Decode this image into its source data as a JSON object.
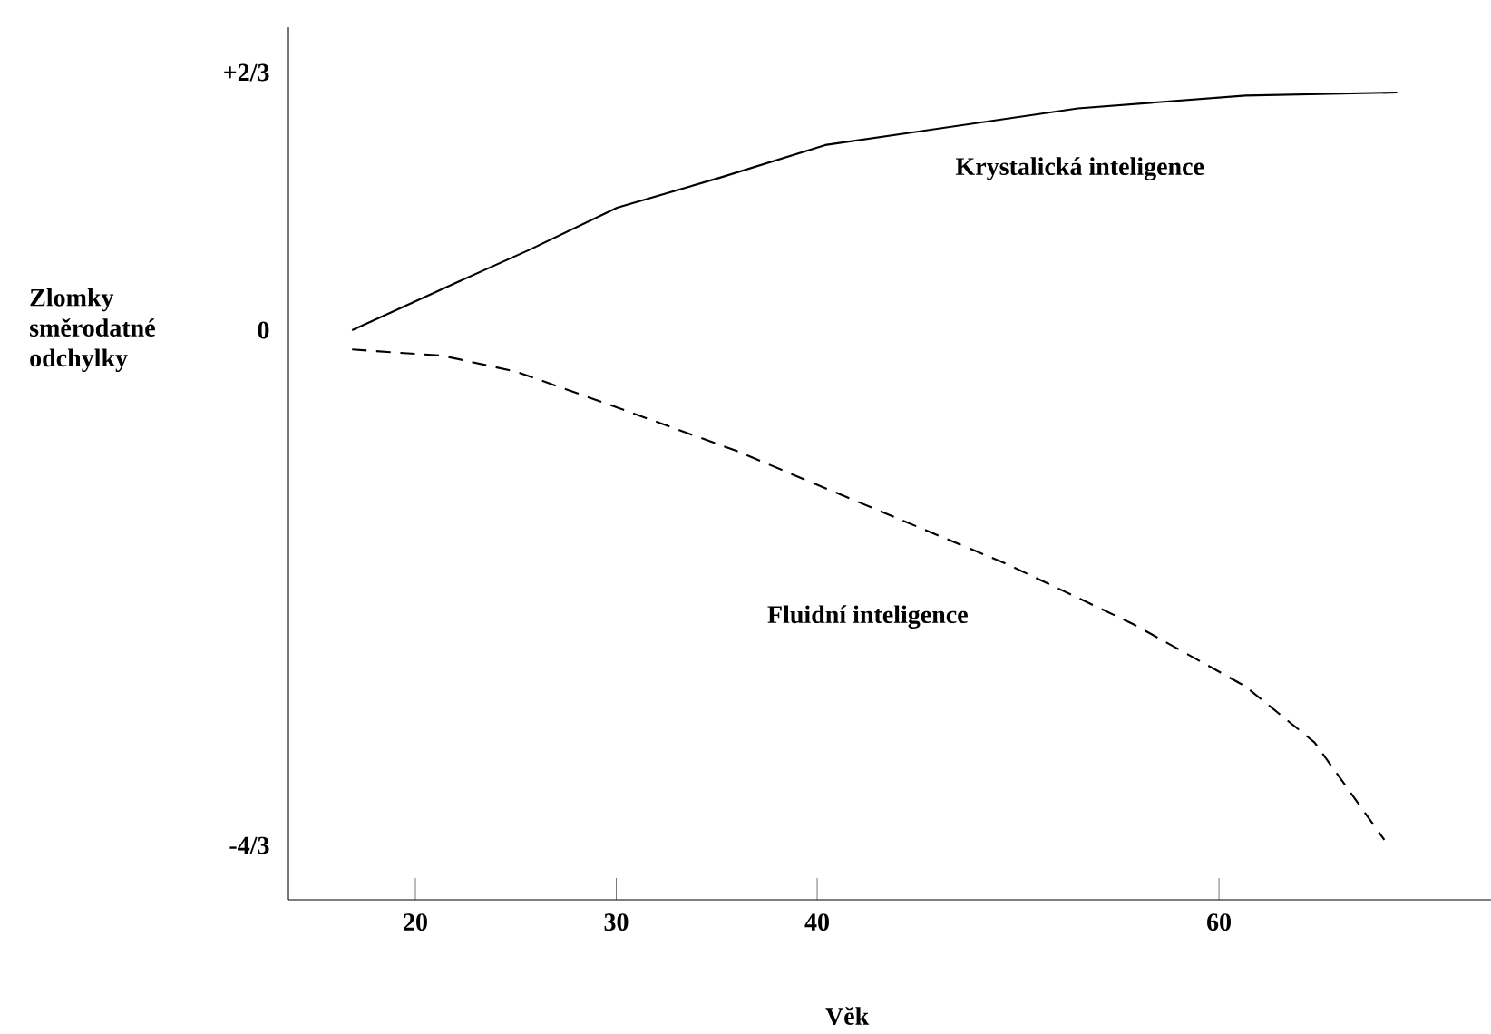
{
  "chart_data": {
    "type": "line",
    "xlabel": "Věk",
    "ylabel": "Zlomky směrodatné odchylky",
    "xlim": [
      13.68,
      73.54
    ],
    "ylim": [
      -1.474,
      0.784
    ],
    "xticks": [
      20,
      30,
      40,
      60
    ],
    "yticks": [
      {
        "value": 0.6667,
        "label": "+2/3"
      },
      0,
      {
        "value": -1.3333,
        "label": "-4/3"
      }
    ],
    "series": [
      {
        "name": "Krystalická inteligence",
        "color": "#000000",
        "line_style": "solid",
        "x": [
          16.85,
          21.95,
          25.68,
          30.04,
          35.12,
          40.4,
          52.98,
          61.32,
          68.87
        ],
        "values": [
          0,
          0.121,
          0.208,
          0.317,
          0.394,
          0.479,
          0.574,
          0.607,
          0.615
        ]
      },
      {
        "name": "Fluidní inteligence",
        "color": "#000000",
        "line_style": "dashed",
        "x": [
          16.85,
          21.34,
          25.06,
          30.04,
          36.01,
          40.45,
          49.47,
          55.74,
          61.29,
          64.76,
          68.23
        ],
        "values": [
          -0.05,
          -0.066,
          -0.108,
          -0.2,
          -0.313,
          -0.41,
          -0.606,
          -0.761,
          -0.921,
          -1.067,
          -1.319
        ]
      }
    ]
  }
}
